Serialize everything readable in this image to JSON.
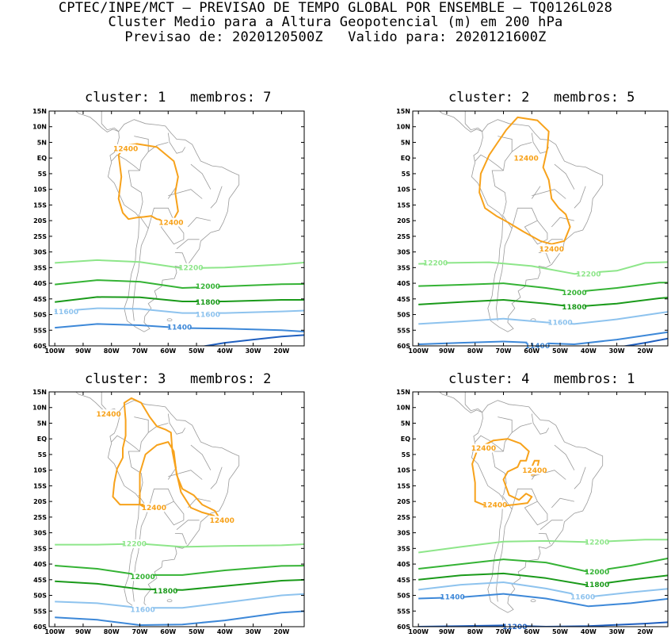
{
  "header": {
    "line1": "CPTEC/INPE/MCT – PREVISAO DE TEMPO GLOBAL POR ENSEMBLE – TQ0126L028",
    "line2": "Cluster Medio para a Altura Geopotencial (m) em 200 hPa",
    "line3": "Previsao de: 2020120500Z   Valido para: 2020121600Z"
  },
  "axes": {
    "lon_labels": [
      "100W",
      "90W",
      "80W",
      "70W",
      "60W",
      "50W",
      "40W",
      "30W",
      "20W"
    ],
    "lat_labels": [
      "15N",
      "10N",
      "5N",
      "EQ",
      "5S",
      "10S",
      "15S",
      "20S",
      "25S",
      "30S",
      "35S",
      "40S",
      "45S",
      "50S",
      "55S",
      "60S"
    ]
  },
  "colors": {
    "c12400": "#f7a21b",
    "c12200": "#8ee68a",
    "c12000": "#35b335",
    "c11800": "#1a9a1a",
    "c11600": "#8ec3ee",
    "c11400": "#3d88d8",
    "c11200": "#1f5fbf",
    "coast": "#9a9a9a"
  },
  "panels": [
    {
      "title": "cluster: 1   membros: 7",
      "labels": [
        {
          "text": "12400",
          "color": "c12400",
          "lon": -75,
          "lat": 3
        },
        {
          "text": "12400",
          "color": "c12400",
          "lon": -59,
          "lat": -20.5
        },
        {
          "text": "12200",
          "color": "c12200",
          "lon": -52,
          "lat": -35
        },
        {
          "text": "12000",
          "color": "c12000",
          "lon": -46,
          "lat": -41
        },
        {
          "text": "11800",
          "color": "c11800",
          "lon": -46,
          "lat": -46
        },
        {
          "text": "11600",
          "color": "c11600",
          "lon": -96,
          "lat": -49
        },
        {
          "text": "11600",
          "color": "c11600",
          "lon": -46,
          "lat": -50
        },
        {
          "text": "11400",
          "color": "c11400",
          "lon": -56,
          "lat": -54
        }
      ]
    },
    {
      "title": "cluster: 2   membros: 5",
      "labels": [
        {
          "text": "12400",
          "color": "c12400",
          "lon": -62,
          "lat": 0
        },
        {
          "text": "12400",
          "color": "c12400",
          "lon": -53,
          "lat": -29
        },
        {
          "text": "12200",
          "color": "c12200",
          "lon": -94,
          "lat": -33.5
        },
        {
          "text": "12200",
          "color": "c12200",
          "lon": -40,
          "lat": -37
        },
        {
          "text": "12000",
          "color": "c12000",
          "lon": -45,
          "lat": -43
        },
        {
          "text": "11800",
          "color": "c11800",
          "lon": -45,
          "lat": -47.5
        },
        {
          "text": "11600",
          "color": "c11600",
          "lon": -50,
          "lat": -52.5
        },
        {
          "text": "11400",
          "color": "c11400",
          "lon": -58,
          "lat": -60
        }
      ]
    },
    {
      "title": "cluster: 3   membros: 2",
      "labels": [
        {
          "text": "12400",
          "color": "c12400",
          "lon": -81,
          "lat": 8
        },
        {
          "text": "12400",
          "color": "c12400",
          "lon": -65,
          "lat": -22
        },
        {
          "text": "12400",
          "color": "c12400",
          "lon": -41,
          "lat": -26
        },
        {
          "text": "12200",
          "color": "c12200",
          "lon": -72,
          "lat": -33.5
        },
        {
          "text": "12000",
          "color": "c12000",
          "lon": -69,
          "lat": -44
        },
        {
          "text": "11800",
          "color": "c11800",
          "lon": -61,
          "lat": -48.5
        },
        {
          "text": "11600",
          "color": "c11600",
          "lon": -69,
          "lat": -54.5
        }
      ]
    },
    {
      "title": "cluster: 4   membros: 1",
      "labels": [
        {
          "text": "12400",
          "color": "c12400",
          "lon": -77,
          "lat": -3
        },
        {
          "text": "12400",
          "color": "c12400",
          "lon": -59,
          "lat": -10
        },
        {
          "text": "12400",
          "color": "c12400",
          "lon": -73,
          "lat": -21
        },
        {
          "text": "12200",
          "color": "c12200",
          "lon": -37,
          "lat": -33
        },
        {
          "text": "12000",
          "color": "c12000",
          "lon": -37,
          "lat": -42.5
        },
        {
          "text": "11800",
          "color": "c11800",
          "lon": -37,
          "lat": -46.5
        },
        {
          "text": "11600",
          "color": "c11600",
          "lon": -42,
          "lat": -50.5
        },
        {
          "text": "11400",
          "color": "c11400",
          "lon": -88,
          "lat": -50.5
        },
        {
          "text": "11200",
          "color": "c11200",
          "lon": -66,
          "lat": -60
        }
      ]
    }
  ]
}
